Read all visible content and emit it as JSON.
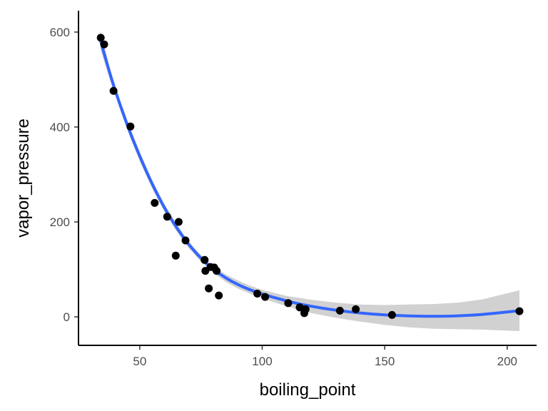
{
  "chart_data": {
    "type": "scatter",
    "xlabel": "boiling_point",
    "ylabel": "vapor_pressure",
    "xlim": [
      25,
      212
    ],
    "ylim": [
      -60,
      645
    ],
    "x_ticks": [
      50,
      100,
      150,
      200
    ],
    "y_ticks": [
      0,
      200,
      400,
      600
    ],
    "x_tick_labels": [
      "50",
      "100",
      "150",
      "200"
    ],
    "y_tick_labels": [
      "0",
      "200",
      "400",
      "600"
    ],
    "grid": false,
    "points": [
      {
        "x": 34.1,
        "y": 588
      },
      {
        "x": 35.5,
        "y": 574
      },
      {
        "x": 39.3,
        "y": 476
      },
      {
        "x": 46.2,
        "y": 401
      },
      {
        "x": 56.1,
        "y": 240
      },
      {
        "x": 61.2,
        "y": 211
      },
      {
        "x": 64.7,
        "y": 129
      },
      {
        "x": 65.9,
        "y": 200
      },
      {
        "x": 68.7,
        "y": 161
      },
      {
        "x": 76.5,
        "y": 120
      },
      {
        "x": 76.8,
        "y": 97
      },
      {
        "x": 78.2,
        "y": 60
      },
      {
        "x": 78.9,
        "y": 105
      },
      {
        "x": 80.4,
        "y": 104
      },
      {
        "x": 81.4,
        "y": 97
      },
      {
        "x": 82.3,
        "y": 45
      },
      {
        "x": 98.0,
        "y": 49
      },
      {
        "x": 101.2,
        "y": 42
      },
      {
        "x": 110.6,
        "y": 29
      },
      {
        "x": 115.3,
        "y": 20
      },
      {
        "x": 117.2,
        "y": 8
      },
      {
        "x": 117.7,
        "y": 16
      },
      {
        "x": 131.7,
        "y": 13
      },
      {
        "x": 138.2,
        "y": 16
      },
      {
        "x": 153.0,
        "y": 4
      },
      {
        "x": 205.0,
        "y": 12
      }
    ],
    "smooth": {
      "method": "loess",
      "color": "#3366FF",
      "band_color": "#bebebe",
      "x": [
        34,
        38,
        42,
        46,
        50,
        55,
        60,
        65,
        70,
        75,
        80,
        85,
        90,
        95,
        100,
        110,
        120,
        130,
        140,
        150,
        160,
        170,
        180,
        190,
        205
      ],
      "y": [
        582,
        508,
        446,
        389,
        338,
        280,
        230,
        188,
        152,
        123,
        100,
        82,
        68,
        57,
        48,
        33,
        22,
        14,
        8,
        4,
        2,
        1,
        2,
        5,
        13
      ],
      "lo": [
        563,
        496,
        436,
        379,
        328,
        271,
        222,
        180,
        145,
        116,
        93,
        74,
        60,
        49,
        39,
        22,
        8,
        -2,
        -10,
        -17,
        -22,
        -25,
        -26,
        -27,
        -30
      ],
      "hi": [
        603,
        520,
        456,
        399,
        348,
        289,
        238,
        196,
        159,
        130,
        107,
        90,
        77,
        66,
        57,
        44,
        36,
        30,
        26,
        25,
        26,
        27,
        30,
        37,
        56
      ]
    },
    "point_color": "#000000"
  }
}
